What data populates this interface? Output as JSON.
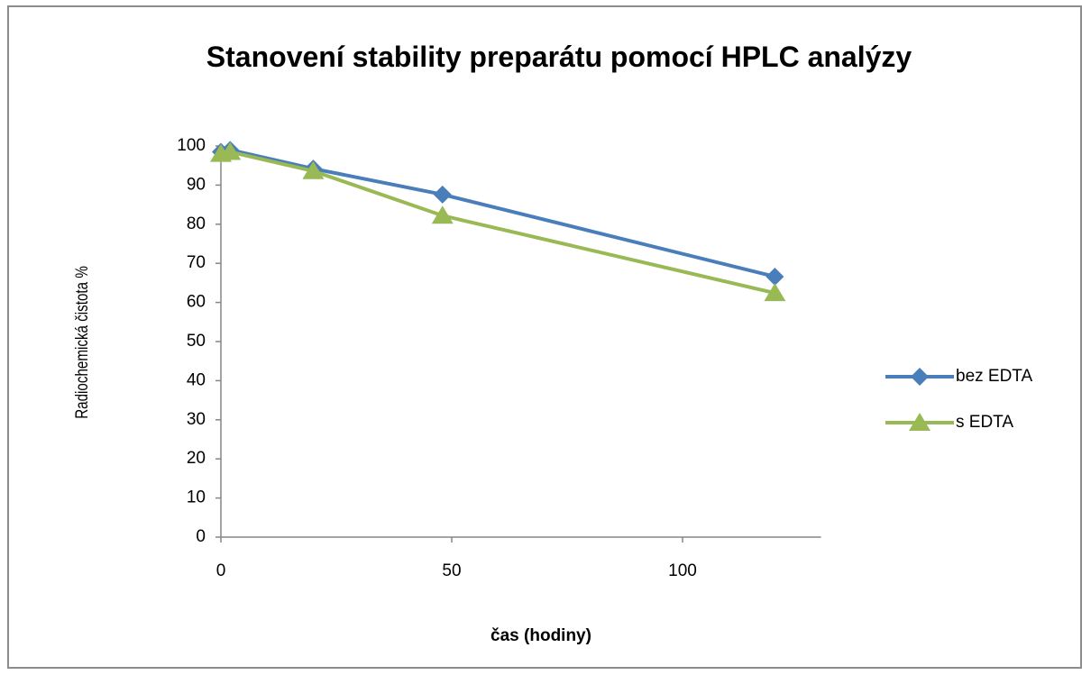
{
  "chart_data": {
    "type": "line",
    "title": "Stanovení stability preparátu pomocí HPLC analýzy",
    "x_label": "čas (hodiny)",
    "y_label": "Radiochemická čistota %",
    "xlim": [
      0,
      130
    ],
    "xticks": [
      0,
      50,
      100
    ],
    "ylim": [
      0,
      100
    ],
    "yticks": [
      0,
      10,
      20,
      30,
      40,
      50,
      60,
      70,
      80,
      90,
      100
    ],
    "grid": false,
    "legend": "right",
    "series": [
      {
        "name": "bez EDTA",
        "color": "#4a7ebb",
        "marker": "diamond",
        "x": [
          0,
          2,
          20,
          48,
          120
        ],
        "values": [
          98.5,
          99,
          94.2,
          87.6,
          66.6
        ]
      },
      {
        "name": "s EDTA",
        "color": "#98b954",
        "marker": "triangle",
        "x": [
          0,
          2,
          20,
          48,
          120
        ],
        "values": [
          98,
          98.5,
          93.6,
          82.2,
          62.4
        ]
      }
    ]
  }
}
